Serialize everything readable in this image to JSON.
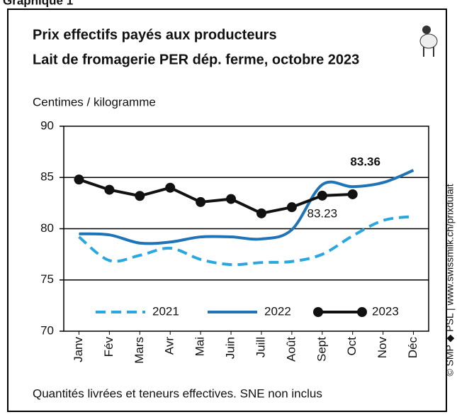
{
  "chart_data": {
    "type": "line",
    "header": "Graphique 1",
    "title": "Prix effectifs payés aux producteurs",
    "subtitle": "Lait de fromagerie PER dép. ferme, octobre 2023",
    "ylabel": "Centimes / kilogramme",
    "footer": "Quantités livrées et teneurs effectives. SNE non inclus",
    "source": "© SMP ◆ PSL | www.swissmilk.ch/prixdulait",
    "categories": [
      "Janv",
      "Fév",
      "Mars",
      "Avr",
      "Mai",
      "Juin",
      "Juill",
      "Août",
      "Sept",
      "Oct",
      "Nov",
      "Déc"
    ],
    "series": [
      {
        "name": "2021",
        "color": "#29a8e0",
        "style": "dashed",
        "values": [
          79.2,
          76.9,
          77.4,
          78.1,
          77.0,
          76.5,
          76.7,
          76.8,
          77.5,
          79.3,
          80.8,
          81.2
        ]
      },
      {
        "name": "2022",
        "color": "#1f74b8",
        "style": "solid",
        "values": [
          79.5,
          79.4,
          78.6,
          78.7,
          79.2,
          79.2,
          79.0,
          79.9,
          84.3,
          84.1,
          84.5,
          85.7
        ]
      },
      {
        "name": "2023",
        "color": "#111111",
        "style": "markers",
        "values": [
          84.8,
          83.8,
          83.2,
          84.0,
          82.6,
          82.9,
          81.5,
          82.1,
          83.23,
          83.36,
          null,
          null
        ],
        "value_labels": [
          null,
          null,
          null,
          null,
          null,
          null,
          null,
          null,
          "83.23",
          "83.36",
          null,
          null
        ]
      }
    ],
    "ylim": [
      70,
      90
    ],
    "yticks": [
      70,
      75,
      80,
      85,
      90
    ],
    "grid": true,
    "legend": "bottom"
  }
}
